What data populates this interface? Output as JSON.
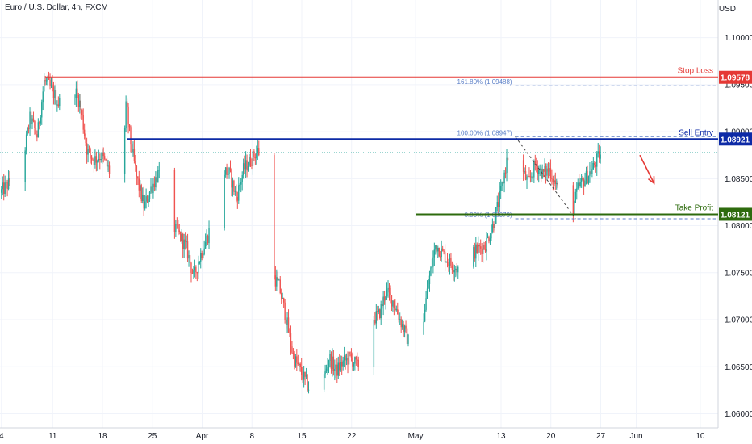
{
  "header": {
    "title": "Euro / U.S. Dollar, 4h, FXCM",
    "currency": "USD"
  },
  "colors": {
    "up": "#26a69a",
    "down": "#ef5350",
    "stop": "#e53935",
    "entry": "#0d2aa6",
    "target": "#2e6b0e",
    "arrow": "#e53935",
    "fib": "#5b7fc7"
  },
  "chart_data": {
    "type": "candlestick",
    "symbol": "EUR/USD",
    "timeframe": "4h",
    "ylim": [
      1.0585,
      1.104
    ],
    "yticks": [
      "1.10000",
      "1.09500",
      "1.09000",
      "1.08500",
      "1.08000",
      "1.07500",
      "1.07000",
      "1.06500",
      "1.06000"
    ],
    "ytick_values": [
      1.1,
      1.095,
      1.09,
      1.085,
      1.08,
      1.075,
      1.07,
      1.065,
      1.06
    ],
    "xticks": [
      {
        "label": "4",
        "day": 3.8
      },
      {
        "label": "11",
        "day": 11
      },
      {
        "label": "18",
        "day": 18
      },
      {
        "label": "25",
        "day": 25
      },
      {
        "label": "Apr",
        "day": 32
      },
      {
        "label": "8",
        "day": 39
      },
      {
        "label": "15",
        "day": 46
      },
      {
        "label": "22",
        "day": 53
      },
      {
        "label": "May",
        "day": 62
      },
      {
        "label": "13",
        "day": 74
      },
      {
        "label": "20",
        "day": 81
      },
      {
        "label": "27",
        "day": 88
      },
      {
        "label": "Jun",
        "day": 93
      },
      {
        "label": "10",
        "day": 102
      }
    ],
    "xlim_days": [
      3.6,
      104.5
    ],
    "path_points": [
      [
        3.8,
        1.0835
      ],
      [
        5,
        1.0845
      ],
      [
        7,
        1.087
      ],
      [
        8,
        1.0915
      ],
      [
        9,
        1.0895
      ],
      [
        10,
        1.0955
      ],
      [
        11,
        1.0945
      ],
      [
        12,
        1.093
      ],
      [
        13,
        1.0935
      ],
      [
        14,
        1.095
      ],
      [
        15,
        1.093
      ],
      [
        16,
        1.088
      ],
      [
        17,
        1.087
      ],
      [
        18,
        1.0875
      ],
      [
        19,
        1.086
      ],
      [
        20,
        1.084
      ],
      [
        21,
        1.086
      ],
      [
        21.5,
        1.093
      ],
      [
        22,
        1.0895
      ],
      [
        23,
        1.085
      ],
      [
        24,
        1.082
      ],
      [
        25,
        1.084
      ],
      [
        26,
        1.0855
      ],
      [
        27,
        1.083
      ],
      [
        28,
        1.08
      ],
      [
        29,
        1.079
      ],
      [
        30,
        1.0775
      ],
      [
        31,
        1.0745
      ],
      [
        32,
        1.077
      ],
      [
        33,
        1.079
      ],
      [
        34,
        1.082
      ],
      [
        35,
        1.086
      ],
      [
        36,
        1.0855
      ],
      [
        37,
        1.083
      ],
      [
        38,
        1.086
      ],
      [
        39,
        1.087
      ],
      [
        40,
        1.088
      ],
      [
        41,
        1.0865
      ],
      [
        41.5,
        1.078
      ],
      [
        42,
        1.075
      ],
      [
        43,
        1.0735
      ],
      [
        44,
        1.07
      ],
      [
        45,
        1.066
      ],
      [
        46,
        1.0645
      ],
      [
        47,
        1.063
      ],
      [
        48,
        1.0615
      ],
      [
        49,
        1.063
      ],
      [
        50,
        1.066
      ],
      [
        51,
        1.0645
      ],
      [
        52,
        1.0655
      ],
      [
        53,
        1.066
      ],
      [
        54,
        1.065
      ],
      [
        55,
        1.067
      ],
      [
        56,
        1.07
      ],
      [
        57,
        1.0705
      ],
      [
        58,
        1.073
      ],
      [
        59,
        1.072
      ],
      [
        60,
        1.07
      ],
      [
        61,
        1.068
      ],
      [
        62,
        1.066
      ],
      [
        63,
        1.069
      ],
      [
        64,
        1.074
      ],
      [
        65,
        1.078
      ],
      [
        66,
        1.077
      ],
      [
        67,
        1.076
      ],
      [
        68,
        1.0755
      ],
      [
        69,
        1.0745
      ],
      [
        70,
        1.077
      ],
      [
        71,
        1.0775
      ],
      [
        72,
        1.078
      ],
      [
        73,
        1.08
      ],
      [
        74,
        1.083
      ],
      [
        75,
        1.087
      ],
      [
        76,
        1.089
      ],
      [
        77,
        1.086
      ],
      [
        78,
        1.0845
      ],
      [
        79,
        1.0865
      ],
      [
        80,
        1.0855
      ],
      [
        81,
        1.086
      ],
      [
        82,
        1.084
      ],
      [
        83,
        1.083
      ],
      [
        84,
        1.081
      ],
      [
        85,
        1.084
      ],
      [
        86,
        1.085
      ],
      [
        87,
        1.086
      ],
      [
        88,
        1.0875
      ]
    ],
    "levels": [
      {
        "name": "Stop Loss",
        "value": "1.09578",
        "price": 1.09578,
        "color": "stop",
        "x_start_day": 10
      },
      {
        "name": "Sell Entry",
        "value": "1.08921",
        "price": 1.08921,
        "color": "entry",
        "x_start_day": 21.5
      },
      {
        "name": "Take Profit",
        "value": "1.08121",
        "price": 1.08121,
        "color": "target",
        "x_start_day": 62
      }
    ],
    "fib": {
      "labels": [
        "161.80% (1.09488)",
        "100.00% (1.08947)",
        "0.00% (1.08073)"
      ],
      "prices": [
        1.09488,
        1.08947,
        1.08073
      ],
      "x_start_day": 76,
      "trend": {
        "from_day": 76,
        "from_price": 1.08947,
        "to_day": 84.5,
        "to_price": 1.08073
      }
    },
    "last_price_line": 1.0878,
    "arrow": {
      "from_day": 93.5,
      "from_price": 1.0875,
      "to_day": 95.5,
      "to_price": 1.0845
    }
  }
}
